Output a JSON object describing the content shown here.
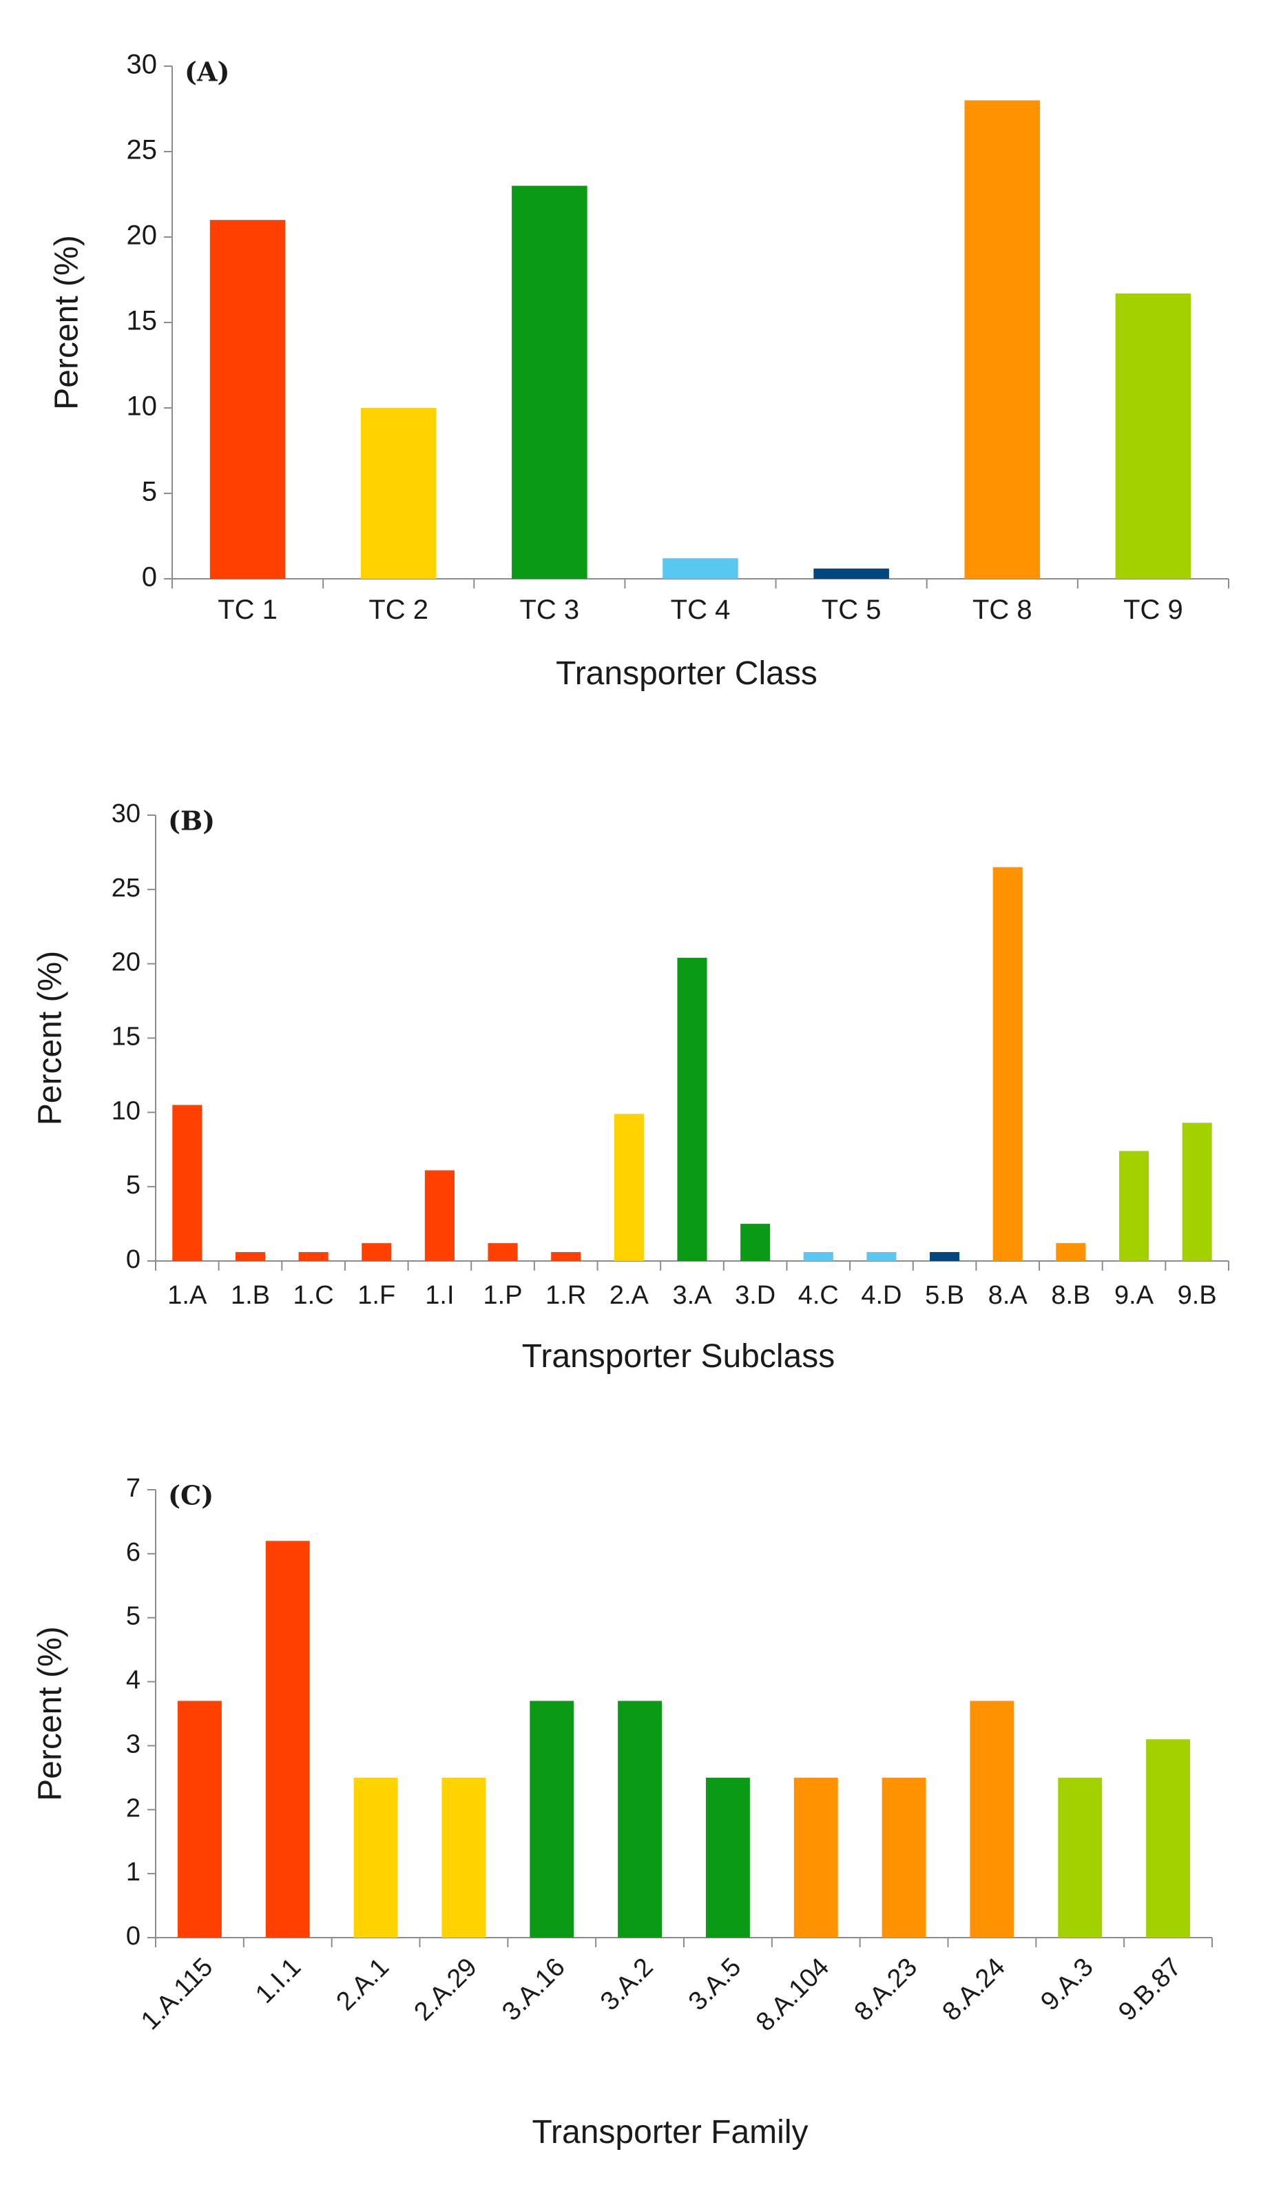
{
  "chart_data": [
    {
      "type": "bar",
      "panel_label": "(A)",
      "xlabel": "Transporter Class",
      "ylabel": "Percent (%)",
      "ylim": [
        0,
        30
      ],
      "y_ticks": [
        0,
        5,
        10,
        15,
        20,
        25,
        30
      ],
      "grid": false,
      "categories": [
        "TC 1",
        "TC 2",
        "TC 3",
        "TC 4",
        "TC 5",
        "TC 8",
        "TC 9"
      ],
      "values": [
        21.0,
        10.0,
        23.0,
        1.2,
        0.6,
        28.0,
        16.7
      ],
      "colors": [
        "#ff4000",
        "#ffd200",
        "#0b9a16",
        "#58c8f0",
        "#00477f",
        "#ff9200",
        "#a3d100"
      ]
    },
    {
      "type": "bar",
      "panel_label": "(B)",
      "xlabel": "Transporter Subclass",
      "ylabel": "Percent (%)",
      "ylim": [
        0,
        30
      ],
      "y_ticks": [
        0,
        5,
        10,
        15,
        20,
        25,
        30
      ],
      "grid": false,
      "categories": [
        "1.A",
        "1.B",
        "1.C",
        "1.F",
        "1.I",
        "1.P",
        "1.R",
        "2.A",
        "3.A",
        "3.D",
        "4.C",
        "4.D",
        "5.B",
        "8.A",
        "8.B",
        "9.A",
        "9.B"
      ],
      "values": [
        10.5,
        0.6,
        0.6,
        1.2,
        6.1,
        1.2,
        0.6,
        9.9,
        20.4,
        2.5,
        0.6,
        0.6,
        0.6,
        26.5,
        1.2,
        7.4,
        9.3
      ],
      "colors": [
        "#ff4000",
        "#ff4000",
        "#ff4000",
        "#ff4000",
        "#ff4000",
        "#ff4000",
        "#ff4000",
        "#ffd200",
        "#0b9a16",
        "#0b9a16",
        "#58c8f0",
        "#58c8f0",
        "#00477f",
        "#ff9200",
        "#ff9200",
        "#a3d100",
        "#a3d100"
      ]
    },
    {
      "type": "bar",
      "panel_label": "(C)",
      "xlabel": "Transporter Family",
      "ylabel": "Percent (%)",
      "ylim": [
        0,
        7
      ],
      "y_ticks": [
        0,
        1,
        2,
        3,
        4,
        5,
        6,
        7
      ],
      "grid": false,
      "categories": [
        "1.A.115",
        "1.I.1",
        "2.A.1",
        "2.A.29",
        "3.A.16",
        "3.A.2",
        "3.A.5",
        "8.A.104",
        "8.A.23",
        "8.A.24",
        "9.A.3",
        "9.B.87"
      ],
      "values": [
        3.7,
        6.2,
        2.5,
        2.5,
        3.7,
        3.7,
        2.5,
        2.5,
        2.5,
        3.7,
        2.5,
        3.1
      ],
      "colors": [
        "#ff4000",
        "#ff4000",
        "#ffd200",
        "#ffd200",
        "#0b9a16",
        "#0b9a16",
        "#0b9a16",
        "#ff9200",
        "#ff9200",
        "#ff9200",
        "#a3d100",
        "#a3d100"
      ]
    }
  ]
}
